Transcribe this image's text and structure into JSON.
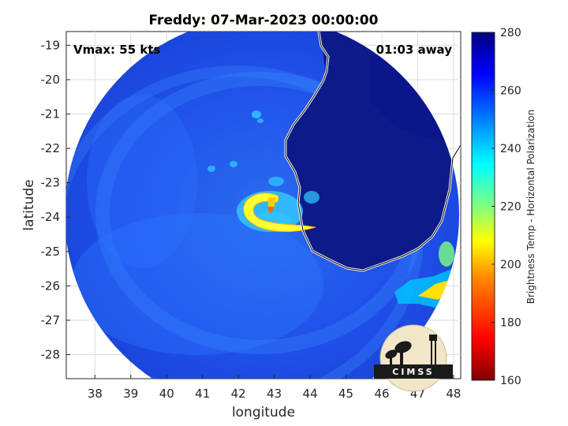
{
  "title": "Freddy: 07-Mar-2023 00:00:00",
  "vmax_label": "Vmax: 55 kts",
  "time_away_label": "01:03 away",
  "logo_text": "CIMSS",
  "chart_data": {
    "type": "heatmap",
    "xlabel": "longitude",
    "ylabel": "latitude",
    "xlim": [
      37.2,
      48.2
    ],
    "ylim": [
      -28.7,
      -18.6
    ],
    "x_ticks": [
      38,
      39,
      40,
      41,
      42,
      43,
      44,
      45,
      46,
      47,
      48
    ],
    "y_ticks": [
      -19,
      -20,
      -21,
      -22,
      -23,
      -24,
      -25,
      -26,
      -27,
      -28
    ],
    "grid": true,
    "storm_center": [
      42.9,
      -23.9
    ],
    "colorbar": {
      "label": "Brightness Temp - Horizontal Polarization",
      "min": 160,
      "max": 280,
      "ticks": [
        160,
        180,
        200,
        220,
        240,
        260,
        280
      ],
      "colormap": "jet"
    }
  }
}
